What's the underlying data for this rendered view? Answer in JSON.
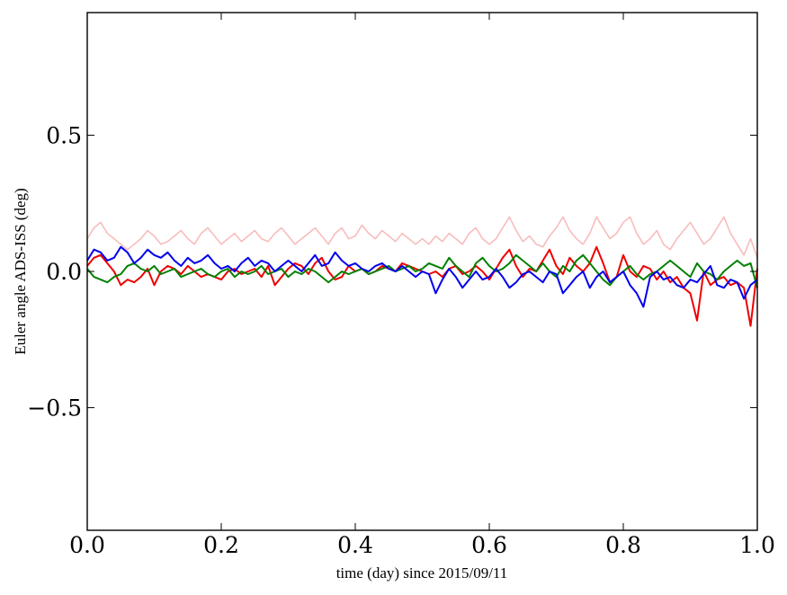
{
  "chart_data": {
    "type": "line",
    "title": "",
    "xlabel": "time (day) since 2015/09/11",
    "ylabel": "Euler angle ADS-ISS (deg)",
    "xlim": [
      0.0,
      1.0
    ],
    "ylim": [
      -0.95,
      0.95
    ],
    "grid": false,
    "x_ticks": [
      {
        "value": 0.0,
        "label": "0.0"
      },
      {
        "value": 0.2,
        "label": "0.2"
      },
      {
        "value": 0.4,
        "label": "0.4"
      },
      {
        "value": 0.6,
        "label": "0.6"
      },
      {
        "value": 0.8,
        "label": "0.8"
      },
      {
        "value": 1.0,
        "label": "1.0"
      }
    ],
    "y_ticks": [
      {
        "value": 0.5,
        "label": "0.5"
      },
      {
        "value": 0.0,
        "label": "0.0"
      },
      {
        "value": -0.5,
        "label": "−0.5"
      }
    ],
    "series": [
      {
        "color": "#f9bcbc",
        "x": [
          0.0,
          0.01,
          0.02,
          0.03,
          0.04,
          0.05,
          0.06,
          0.07,
          0.08,
          0.09,
          0.1,
          0.11,
          0.12,
          0.13,
          0.14,
          0.15,
          0.16,
          0.17,
          0.18,
          0.19,
          0.2,
          0.21,
          0.22,
          0.23,
          0.24,
          0.25,
          0.26,
          0.27,
          0.28,
          0.29,
          0.3,
          0.31,
          0.32,
          0.33,
          0.34,
          0.35,
          0.36,
          0.37,
          0.38,
          0.39,
          0.4,
          0.41,
          0.42,
          0.43,
          0.44,
          0.45,
          0.46,
          0.47,
          0.48,
          0.49,
          0.5,
          0.51,
          0.52,
          0.53,
          0.54,
          0.55,
          0.56,
          0.57,
          0.58,
          0.59,
          0.6,
          0.61,
          0.62,
          0.63,
          0.64,
          0.65,
          0.66,
          0.67,
          0.68,
          0.69,
          0.7,
          0.71,
          0.72,
          0.73,
          0.74,
          0.75,
          0.76,
          0.77,
          0.78,
          0.79,
          0.8,
          0.81,
          0.82,
          0.83,
          0.84,
          0.85,
          0.86,
          0.87,
          0.88,
          0.89,
          0.9,
          0.91,
          0.92,
          0.93,
          0.94,
          0.95,
          0.96,
          0.97,
          0.98,
          0.99,
          1.0
        ],
        "values": [
          0.12,
          0.16,
          0.18,
          0.14,
          0.12,
          0.1,
          0.08,
          0.1,
          0.12,
          0.15,
          0.13,
          0.1,
          0.11,
          0.13,
          0.15,
          0.12,
          0.1,
          0.14,
          0.16,
          0.13,
          0.1,
          0.12,
          0.14,
          0.11,
          0.13,
          0.15,
          0.12,
          0.11,
          0.14,
          0.16,
          0.13,
          0.1,
          0.12,
          0.14,
          0.16,
          0.13,
          0.1,
          0.14,
          0.16,
          0.12,
          0.13,
          0.17,
          0.14,
          0.12,
          0.15,
          0.13,
          0.11,
          0.14,
          0.12,
          0.1,
          0.12,
          0.1,
          0.13,
          0.11,
          0.14,
          0.12,
          0.1,
          0.14,
          0.16,
          0.12,
          0.1,
          0.12,
          0.16,
          0.2,
          0.15,
          0.11,
          0.13,
          0.1,
          0.09,
          0.13,
          0.16,
          0.2,
          0.15,
          0.12,
          0.1,
          0.14,
          0.2,
          0.16,
          0.12,
          0.14,
          0.18,
          0.2,
          0.14,
          0.1,
          0.12,
          0.15,
          0.1,
          0.08,
          0.12,
          0.15,
          0.18,
          0.14,
          0.1,
          0.12,
          0.16,
          0.2,
          0.14,
          0.1,
          0.06,
          0.12,
          0.05
        ]
      },
      {
        "color": "#ee0000",
        "x": [
          0.0,
          0.01,
          0.02,
          0.03,
          0.04,
          0.05,
          0.06,
          0.07,
          0.08,
          0.09,
          0.1,
          0.11,
          0.12,
          0.13,
          0.14,
          0.15,
          0.16,
          0.17,
          0.18,
          0.19,
          0.2,
          0.21,
          0.22,
          0.23,
          0.24,
          0.25,
          0.26,
          0.27,
          0.28,
          0.29,
          0.3,
          0.31,
          0.32,
          0.33,
          0.34,
          0.35,
          0.36,
          0.37,
          0.38,
          0.39,
          0.4,
          0.41,
          0.42,
          0.43,
          0.44,
          0.45,
          0.46,
          0.47,
          0.48,
          0.49,
          0.5,
          0.51,
          0.52,
          0.53,
          0.54,
          0.55,
          0.56,
          0.57,
          0.58,
          0.59,
          0.6,
          0.61,
          0.62,
          0.63,
          0.64,
          0.65,
          0.66,
          0.67,
          0.68,
          0.69,
          0.7,
          0.71,
          0.72,
          0.73,
          0.74,
          0.75,
          0.76,
          0.77,
          0.78,
          0.79,
          0.8,
          0.81,
          0.82,
          0.83,
          0.84,
          0.85,
          0.86,
          0.87,
          0.88,
          0.89,
          0.9,
          0.91,
          0.92,
          0.93,
          0.94,
          0.95,
          0.96,
          0.97,
          0.98,
          0.99,
          1.0
        ],
        "values": [
          0.02,
          0.05,
          0.06,
          0.03,
          0.0,
          -0.05,
          -0.03,
          -0.04,
          -0.02,
          0.01,
          -0.05,
          0.0,
          0.02,
          0.01,
          -0.01,
          0.02,
          0.0,
          -0.02,
          -0.01,
          -0.02,
          -0.03,
          0.0,
          0.01,
          -0.01,
          0.0,
          0.01,
          -0.02,
          0.02,
          -0.05,
          -0.02,
          0.01,
          0.03,
          0.02,
          -0.01,
          0.03,
          0.05,
          0.0,
          -0.03,
          -0.02,
          0.02,
          0.0,
          0.01,
          -0.01,
          0.0,
          0.02,
          0.01,
          0.0,
          0.03,
          0.02,
          0.01,
          0.0,
          -0.01,
          0.0,
          -0.02,
          0.01,
          0.02,
          -0.01,
          0.0,
          0.02,
          0.0,
          -0.03,
          0.01,
          0.05,
          0.08,
          0.02,
          -0.02,
          0.01,
          0.0,
          0.04,
          0.08,
          0.02,
          -0.01,
          0.05,
          0.02,
          0.0,
          0.03,
          0.09,
          0.03,
          -0.04,
          -0.02,
          0.06,
          0.0,
          -0.02,
          0.02,
          0.01,
          -0.03,
          0.0,
          -0.04,
          -0.02,
          -0.06,
          -0.08,
          -0.18,
          0.0,
          -0.05,
          -0.03,
          -0.02,
          -0.05,
          -0.04,
          -0.06,
          -0.2,
          0.01
        ]
      },
      {
        "color": "#008000",
        "x": [
          0.0,
          0.01,
          0.02,
          0.03,
          0.04,
          0.05,
          0.06,
          0.07,
          0.08,
          0.09,
          0.1,
          0.11,
          0.12,
          0.13,
          0.14,
          0.15,
          0.16,
          0.17,
          0.18,
          0.19,
          0.2,
          0.21,
          0.22,
          0.23,
          0.24,
          0.25,
          0.26,
          0.27,
          0.28,
          0.29,
          0.3,
          0.31,
          0.32,
          0.33,
          0.34,
          0.35,
          0.36,
          0.37,
          0.38,
          0.39,
          0.4,
          0.41,
          0.42,
          0.43,
          0.44,
          0.45,
          0.46,
          0.47,
          0.48,
          0.49,
          0.5,
          0.51,
          0.52,
          0.53,
          0.54,
          0.55,
          0.56,
          0.57,
          0.58,
          0.59,
          0.6,
          0.61,
          0.62,
          0.63,
          0.64,
          0.65,
          0.66,
          0.67,
          0.68,
          0.69,
          0.7,
          0.71,
          0.72,
          0.73,
          0.74,
          0.75,
          0.76,
          0.77,
          0.78,
          0.79,
          0.8,
          0.81,
          0.82,
          0.83,
          0.84,
          0.85,
          0.86,
          0.87,
          0.88,
          0.89,
          0.9,
          0.91,
          0.92,
          0.93,
          0.94,
          0.95,
          0.96,
          0.97,
          0.98,
          0.99,
          1.0
        ],
        "values": [
          0.01,
          -0.02,
          -0.03,
          -0.04,
          -0.02,
          -0.01,
          0.02,
          0.03,
          0.01,
          0.0,
          0.02,
          -0.01,
          0.0,
          0.01,
          -0.02,
          -0.01,
          0.0,
          0.01,
          -0.01,
          -0.02,
          0.0,
          0.01,
          -0.02,
          0.0,
          -0.01,
          0.0,
          0.02,
          -0.01,
          0.0,
          0.01,
          -0.02,
          0.0,
          -0.01,
          0.01,
          0.0,
          -0.02,
          -0.04,
          -0.02,
          0.0,
          -0.01,
          0.0,
          0.01,
          -0.01,
          0.0,
          0.01,
          0.02,
          0.0,
          0.01,
          0.02,
          0.0,
          0.01,
          0.03,
          0.02,
          0.01,
          0.05,
          0.02,
          0.0,
          -0.02,
          0.03,
          0.05,
          0.02,
          0.0,
          0.01,
          0.03,
          0.06,
          0.04,
          0.02,
          0.0,
          0.03,
          0.0,
          -0.02,
          0.02,
          0.0,
          0.04,
          0.06,
          0.03,
          0.0,
          -0.03,
          -0.05,
          -0.02,
          0.0,
          0.02,
          -0.01,
          -0.03,
          -0.01,
          0.0,
          0.02,
          0.04,
          0.02,
          0.0,
          -0.02,
          0.03,
          0.0,
          -0.01,
          -0.03,
          0.0,
          0.02,
          0.04,
          0.02,
          0.03,
          -0.06
        ]
      },
      {
        "color": "#0000ee",
        "x": [
          0.0,
          0.01,
          0.02,
          0.03,
          0.04,
          0.05,
          0.06,
          0.07,
          0.08,
          0.09,
          0.1,
          0.11,
          0.12,
          0.13,
          0.14,
          0.15,
          0.16,
          0.17,
          0.18,
          0.19,
          0.2,
          0.21,
          0.22,
          0.23,
          0.24,
          0.25,
          0.26,
          0.27,
          0.28,
          0.29,
          0.3,
          0.31,
          0.32,
          0.33,
          0.34,
          0.35,
          0.36,
          0.37,
          0.38,
          0.39,
          0.4,
          0.41,
          0.42,
          0.43,
          0.44,
          0.45,
          0.46,
          0.47,
          0.48,
          0.49,
          0.5,
          0.51,
          0.52,
          0.53,
          0.54,
          0.55,
          0.56,
          0.57,
          0.58,
          0.59,
          0.6,
          0.61,
          0.62,
          0.63,
          0.64,
          0.65,
          0.66,
          0.67,
          0.68,
          0.69,
          0.7,
          0.71,
          0.72,
          0.73,
          0.74,
          0.75,
          0.76,
          0.77,
          0.78,
          0.79,
          0.8,
          0.81,
          0.82,
          0.83,
          0.84,
          0.85,
          0.86,
          0.87,
          0.88,
          0.89,
          0.9,
          0.91,
          0.92,
          0.93,
          0.94,
          0.95,
          0.96,
          0.97,
          0.98,
          0.99,
          1.0
        ],
        "values": [
          0.04,
          0.08,
          0.07,
          0.04,
          0.05,
          0.09,
          0.07,
          0.03,
          0.05,
          0.08,
          0.06,
          0.05,
          0.07,
          0.04,
          0.02,
          0.05,
          0.03,
          0.04,
          0.06,
          0.03,
          0.01,
          0.02,
          0.0,
          0.03,
          0.05,
          0.02,
          0.04,
          0.03,
          0.0,
          0.02,
          0.04,
          0.02,
          0.0,
          0.03,
          0.06,
          0.02,
          0.03,
          0.07,
          0.04,
          0.02,
          0.03,
          0.01,
          0.0,
          0.02,
          0.03,
          0.01,
          0.0,
          0.02,
          0.0,
          -0.02,
          0.0,
          -0.01,
          -0.08,
          -0.03,
          0.01,
          -0.02,
          -0.06,
          -0.03,
          0.0,
          -0.03,
          -0.02,
          0.01,
          -0.02,
          -0.06,
          -0.04,
          -0.01,
          0.0,
          -0.02,
          -0.04,
          0.0,
          -0.01,
          -0.08,
          -0.05,
          -0.02,
          0.0,
          -0.06,
          -0.02,
          0.0,
          -0.04,
          -0.02,
          0.0,
          -0.05,
          -0.08,
          -0.13,
          -0.02,
          0.0,
          -0.03,
          -0.02,
          -0.05,
          -0.06,
          -0.03,
          -0.04,
          -0.01,
          0.02,
          -0.05,
          -0.06,
          -0.03,
          -0.04,
          -0.1,
          -0.05,
          -0.03
        ]
      }
    ]
  }
}
